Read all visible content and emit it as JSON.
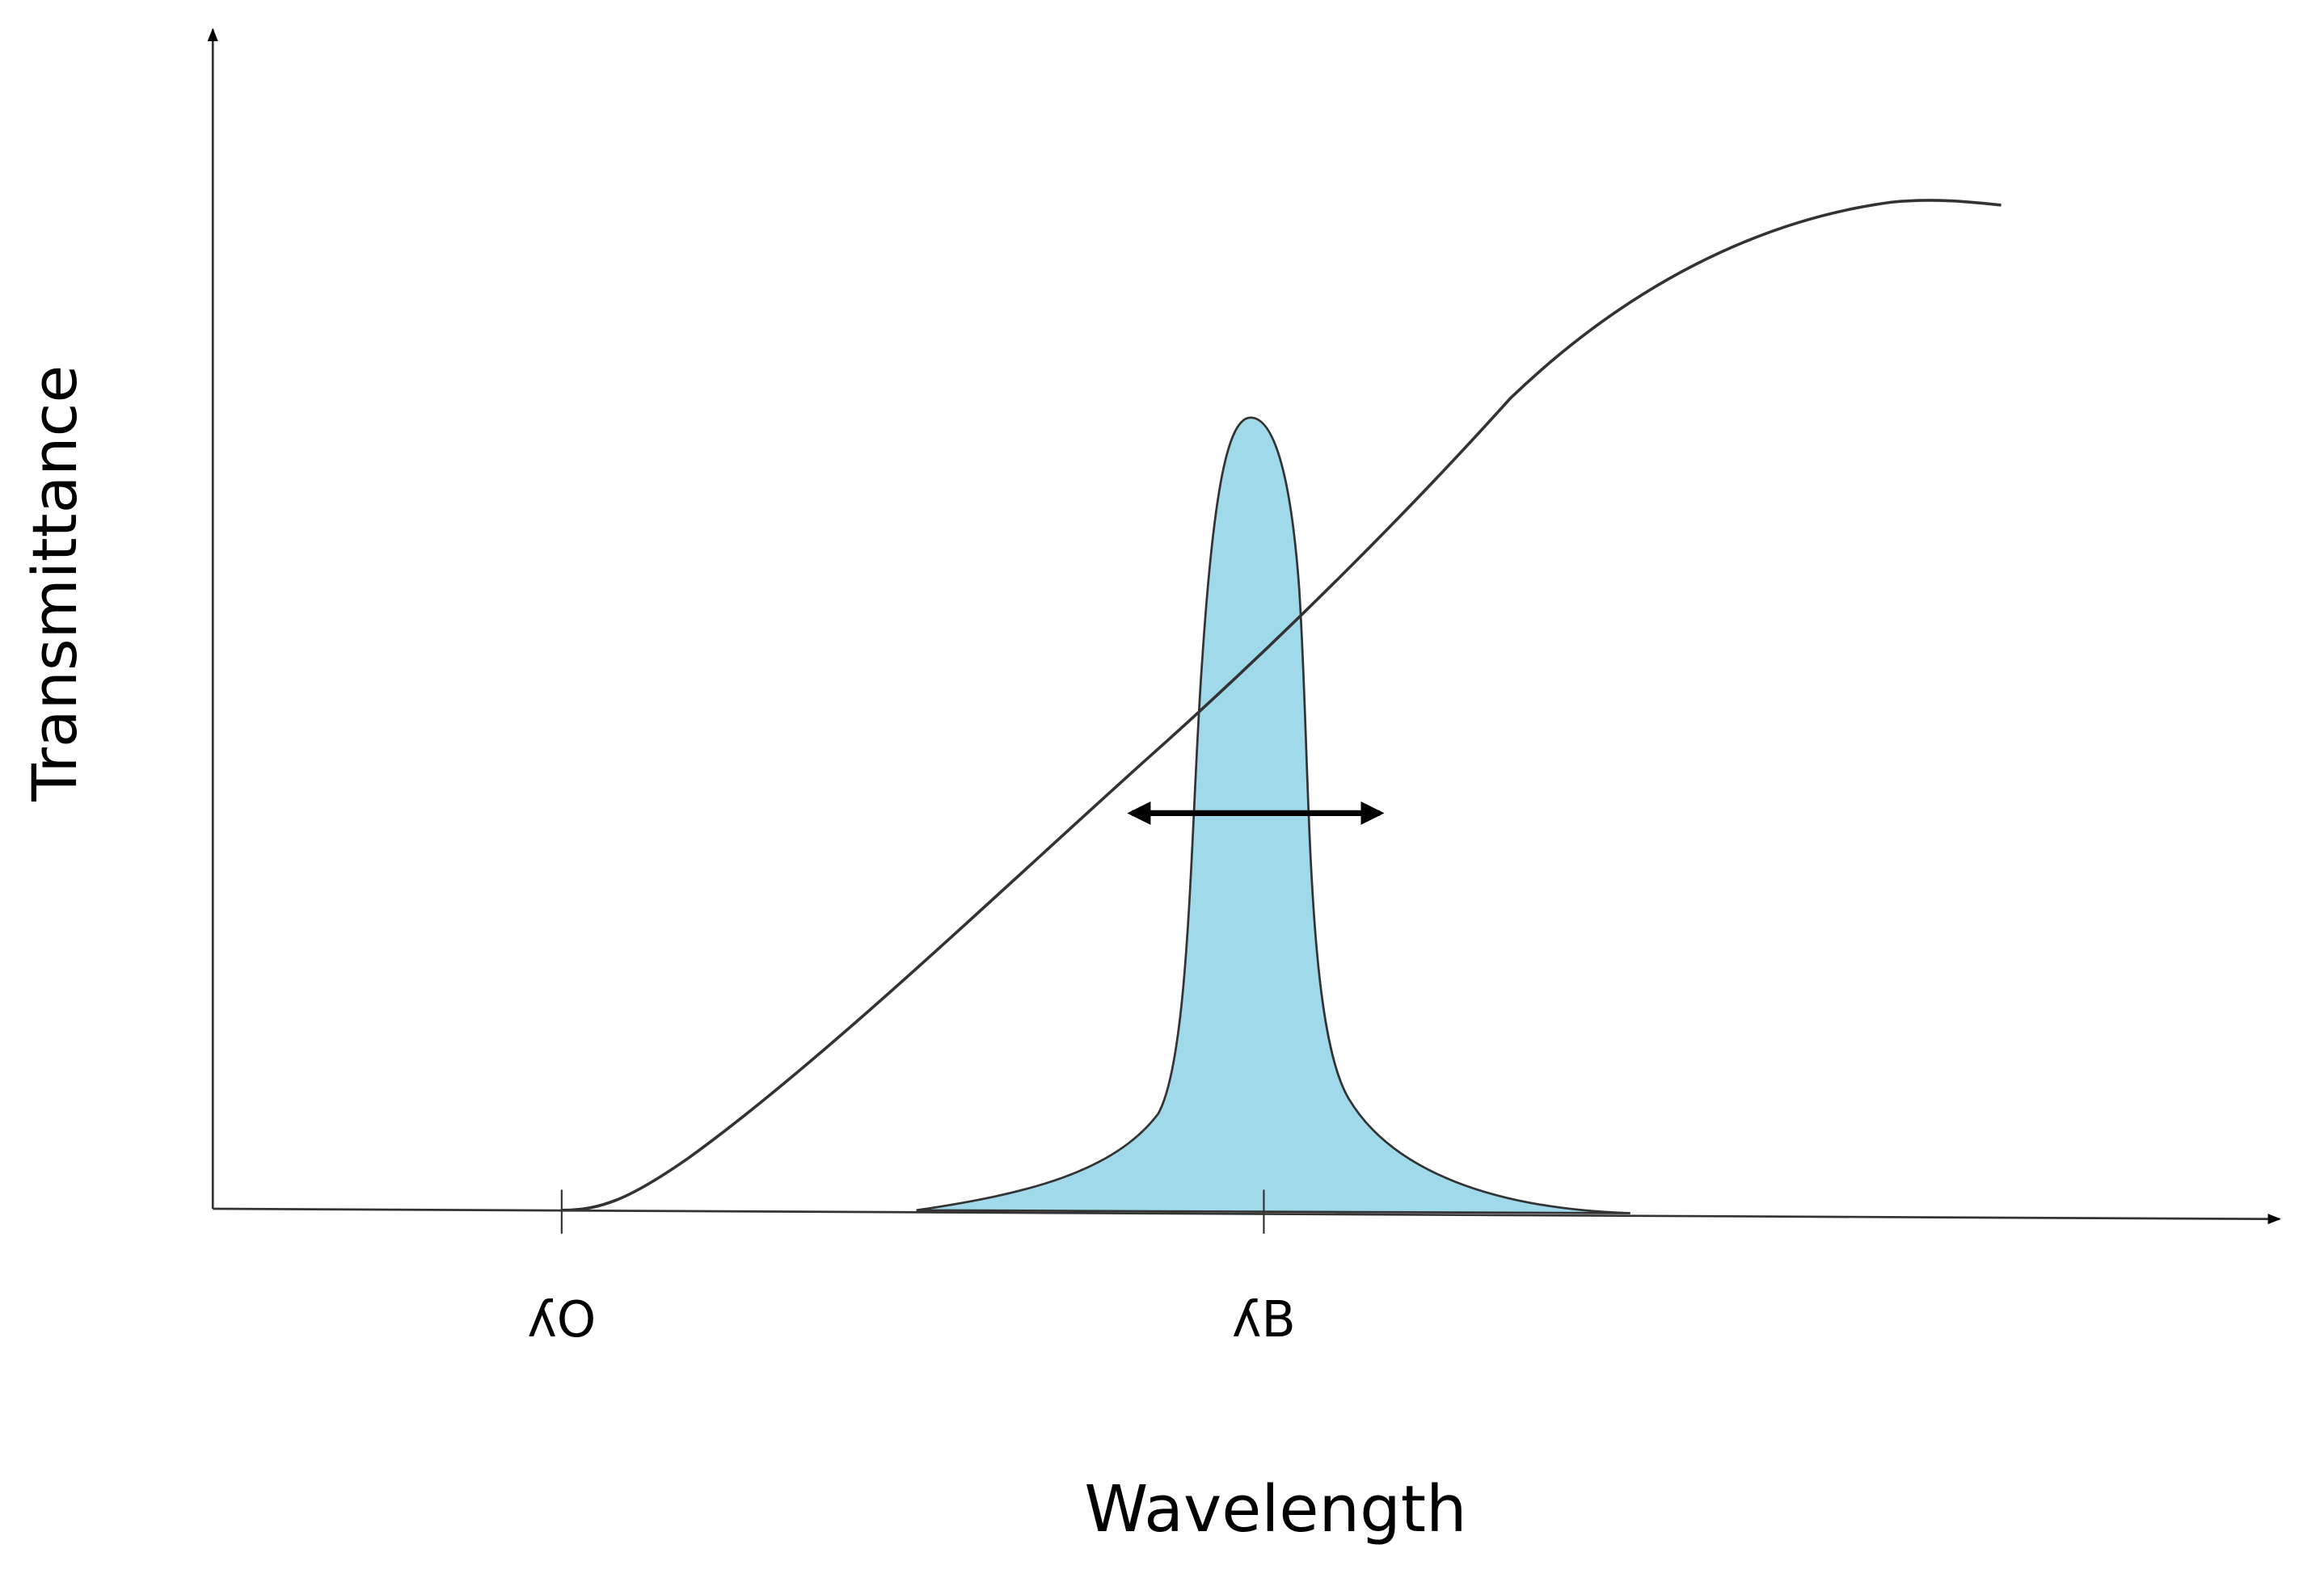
{
  "y_axis_label": "Transmittance",
  "x_axis_label": "Wavelength",
  "markers": [
    "ʎO",
    "ʎB"
  ]
}
